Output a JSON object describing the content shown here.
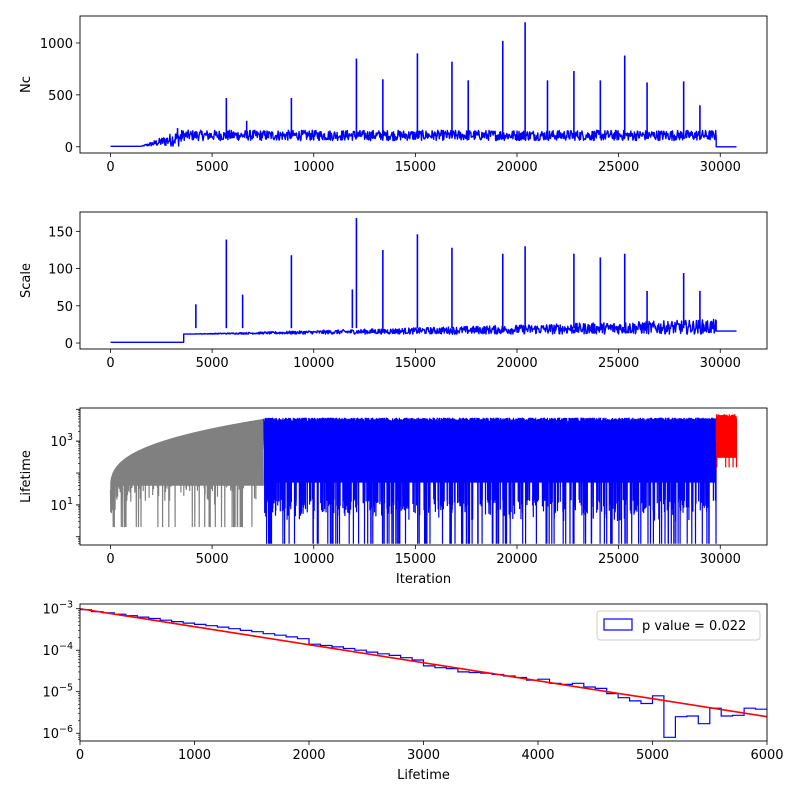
{
  "chart_data": [
    {
      "type": "line",
      "ylabel": "Nc",
      "xlabel": "",
      "xlim": [
        -1500,
        32300
      ],
      "ylim": [
        -60,
        1260
      ],
      "xticks": [
        0,
        5000,
        10000,
        15000,
        20000,
        25000,
        30000
      ],
      "yticks": [
        0,
        500,
        1000
      ],
      "series": [
        {
          "color": "#0000ff",
          "segments": [
            {
              "x": [
                0,
                1500
              ],
              "y": [
                5,
                5
              ]
            },
            {
              "x": [
                1500,
                3500
              ],
              "y": [
                5,
                160
              ]
            },
            {
              "x": [
                3500,
                29800
              ],
              "y": [
                60,
                160
              ]
            },
            {
              "x": [
                29800,
                30800
              ],
              "y": [
                0,
                0
              ]
            }
          ],
          "spikes": [
            {
              "x": 3300,
              "y": 180
            },
            {
              "x": 5700,
              "y": 470
            },
            {
              "x": 6700,
              "y": 250
            },
            {
              "x": 8900,
              "y": 470
            },
            {
              "x": 12100,
              "y": 850
            },
            {
              "x": 13400,
              "y": 650
            },
            {
              "x": 15100,
              "y": 900
            },
            {
              "x": 16800,
              "y": 820
            },
            {
              "x": 17600,
              "y": 640
            },
            {
              "x": 19300,
              "y": 1020
            },
            {
              "x": 20400,
              "y": 1200
            },
            {
              "x": 21500,
              "y": 640
            },
            {
              "x": 22800,
              "y": 730
            },
            {
              "x": 24100,
              "y": 640
            },
            {
              "x": 25300,
              "y": 880
            },
            {
              "x": 26400,
              "y": 620
            },
            {
              "x": 28200,
              "y": 630
            },
            {
              "x": 29000,
              "y": 400
            }
          ]
        }
      ]
    },
    {
      "type": "line",
      "ylabel": "Scale",
      "xlabel": "",
      "xlim": [
        -1500,
        32300
      ],
      "ylim": [
        -8,
        176
      ],
      "xticks": [
        0,
        5000,
        10000,
        15000,
        20000,
        25000,
        30000
      ],
      "yticks": [
        0,
        50,
        100,
        150
      ],
      "series": [
        {
          "color": "#0000ff",
          "segments": [
            {
              "x": [
                0,
                3600
              ],
              "y": [
                1,
                1
              ]
            },
            {
              "x": [
                3600,
                29800
              ],
              "y": [
                12,
                30
              ]
            },
            {
              "x": [
                29800,
                30800
              ],
              "y": [
                16,
                16
              ]
            }
          ],
          "spikes": [
            {
              "x": 4200,
              "y": 52
            },
            {
              "x": 5700,
              "y": 139
            },
            {
              "x": 6500,
              "y": 65
            },
            {
              "x": 8900,
              "y": 118
            },
            {
              "x": 11900,
              "y": 72
            },
            {
              "x": 12100,
              "y": 168
            },
            {
              "x": 13400,
              "y": 125
            },
            {
              "x": 15100,
              "y": 146
            },
            {
              "x": 16800,
              "y": 128
            },
            {
              "x": 19300,
              "y": 120
            },
            {
              "x": 20400,
              "y": 130
            },
            {
              "x": 22800,
              "y": 120
            },
            {
              "x": 24100,
              "y": 115
            },
            {
              "x": 25300,
              "y": 120
            },
            {
              "x": 26400,
              "y": 70
            },
            {
              "x": 28200,
              "y": 94
            },
            {
              "x": 29000,
              "y": 70
            }
          ]
        }
      ]
    },
    {
      "type": "line",
      "ylabel": "Lifetime",
      "xlabel": "Iteration",
      "yscale": "log",
      "xlim": [
        -1500,
        32300
      ],
      "ylim": [
        0.55,
        11000
      ],
      "xticks": [
        0,
        5000,
        10000,
        15000,
        20000,
        25000,
        30000
      ],
      "yticks": [
        10,
        1000
      ],
      "ytick_labels": [
        "10^1",
        "10^3"
      ],
      "series": [
        {
          "color": "#808080",
          "x_range": [
            0,
            7550
          ],
          "envelope": "sawtooth-rise",
          "max": 5000,
          "min": 2
        },
        {
          "color": "#0000ff",
          "x_range": [
            7550,
            29800
          ],
          "envelope": "band",
          "max": 5500,
          "min": 0.6
        },
        {
          "color": "#ff0000",
          "x_range": [
            29800,
            30800
          ],
          "envelope": "band",
          "max": 7000,
          "min": 150
        }
      ]
    },
    {
      "type": "histogram",
      "ylabel": "",
      "xlabel": "Lifetime",
      "yscale": "log",
      "xlim": [
        0,
        6000
      ],
      "ylim": [
        6.5e-07,
        0.0013
      ],
      "xticks": [
        0,
        1000,
        2000,
        3000,
        4000,
        5000,
        6000
      ],
      "yticks": [
        1e-06,
        1e-05,
        0.0001,
        0.001
      ],
      "ytick_labels": [
        "10^-6",
        "10^-5",
        "10^-4",
        "10^-3"
      ],
      "legend": {
        "label": "p value = 0.022",
        "position": "upper right"
      },
      "bin_width": 100,
      "bin_values": [
        0.00095,
        0.00085,
        0.0008,
        0.00074,
        0.00068,
        0.00063,
        0.00058,
        0.00053,
        0.00049,
        0.00045,
        0.00042,
        0.00039,
        0.00036,
        0.00033,
        0.0003,
        0.00028,
        0.00025,
        0.00023,
        0.00021,
        0.00019,
        0.00014,
        0.00013,
        0.00012,
        0.00011,
        0.0001,
        9e-05,
        8.2e-05,
        7.5e-05,
        6.6e-05,
        5.8e-05,
        4.2e-05,
        3.8e-05,
        3.6e-05,
        3e-05,
        2.9e-05,
        2.8e-05,
        2.6e-05,
        2.4e-05,
        2.2e-05,
        1.9e-05,
        2e-05,
        1.6e-05,
        1.5e-05,
        1.6e-05,
        1.3e-05,
        1.2e-05,
        9e-06,
        7.2e-06,
        6e-06,
        5.2e-06,
        8e-06,
        8e-07,
        2.5e-06,
        2.6e-06,
        1.7e-06,
        4e-06,
        2.6e-06,
        2.7e-06,
        4e-06,
        3.8e-06
      ],
      "bin_color": "#0000ff",
      "fit": {
        "color": "#ff0000",
        "x": [
          0,
          6000
        ],
        "y": [
          0.001,
          2.5e-06
        ]
      }
    }
  ]
}
